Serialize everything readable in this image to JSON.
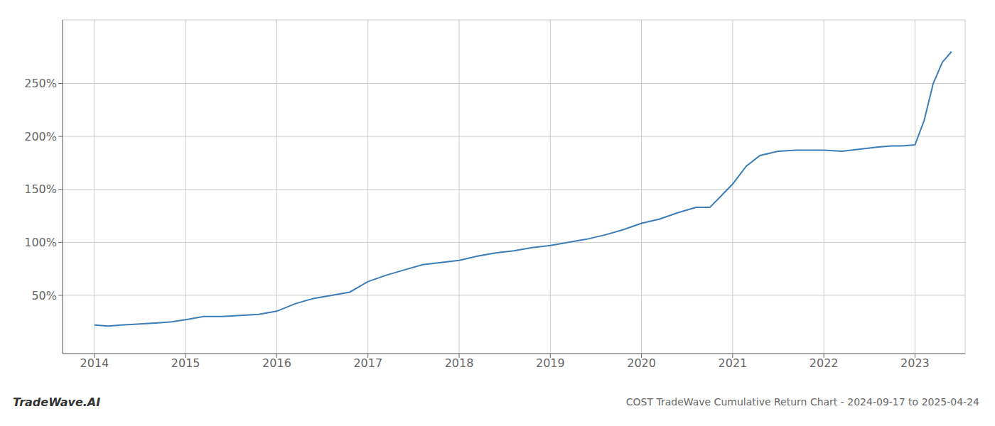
{
  "chart_data": {
    "type": "line",
    "title": "COST TradeWave Cumulative Return Chart - 2024-09-17 to 2025-04-24",
    "annotations": [
      "TradeWave.AI"
    ],
    "x": [
      2014.0,
      2014.15,
      2014.3,
      2014.5,
      2014.7,
      2014.85,
      2015.0,
      2015.2,
      2015.4,
      2015.6,
      2015.8,
      2016.0,
      2016.2,
      2016.4,
      2016.6,
      2016.8,
      2017.0,
      2017.2,
      2017.4,
      2017.6,
      2017.8,
      2018.0,
      2018.2,
      2018.4,
      2018.6,
      2018.8,
      2019.0,
      2019.2,
      2019.4,
      2019.6,
      2019.8,
      2020.0,
      2020.2,
      2020.4,
      2020.6,
      2020.75,
      2021.0,
      2021.15,
      2021.3,
      2021.5,
      2021.7,
      2021.9,
      2022.0,
      2022.2,
      2022.4,
      2022.6,
      2022.75,
      2022.85,
      2023.0,
      2023.1,
      2023.2,
      2023.3,
      2023.4
    ],
    "values": [
      22,
      21,
      22,
      23,
      24,
      25,
      27,
      30,
      30,
      31,
      32,
      35,
      42,
      47,
      50,
      53,
      63,
      69,
      74,
      79,
      81,
      83,
      87,
      90,
      92,
      95,
      97,
      100,
      103,
      107,
      112,
      118,
      122,
      128,
      133,
      133,
      155,
      172,
      182,
      186,
      187,
      187,
      187,
      186,
      188,
      190,
      191,
      191,
      192,
      215,
      250,
      270,
      280
    ],
    "color": "#3a7db8",
    "xlim": [
      2013.65,
      2023.55
    ],
    "xticks": [
      2014,
      2015,
      2016,
      2017,
      2018,
      2019,
      2020,
      2021,
      2022,
      2023
    ],
    "ylim": [
      -5,
      310
    ],
    "yticks": [
      {
        "value": 50,
        "label": "50%"
      },
      {
        "value": 100,
        "label": "100%"
      },
      {
        "value": 150,
        "label": "150%"
      },
      {
        "value": 200,
        "label": "200%"
      },
      {
        "value": 250,
        "label": "250%"
      }
    ],
    "grid": true
  }
}
